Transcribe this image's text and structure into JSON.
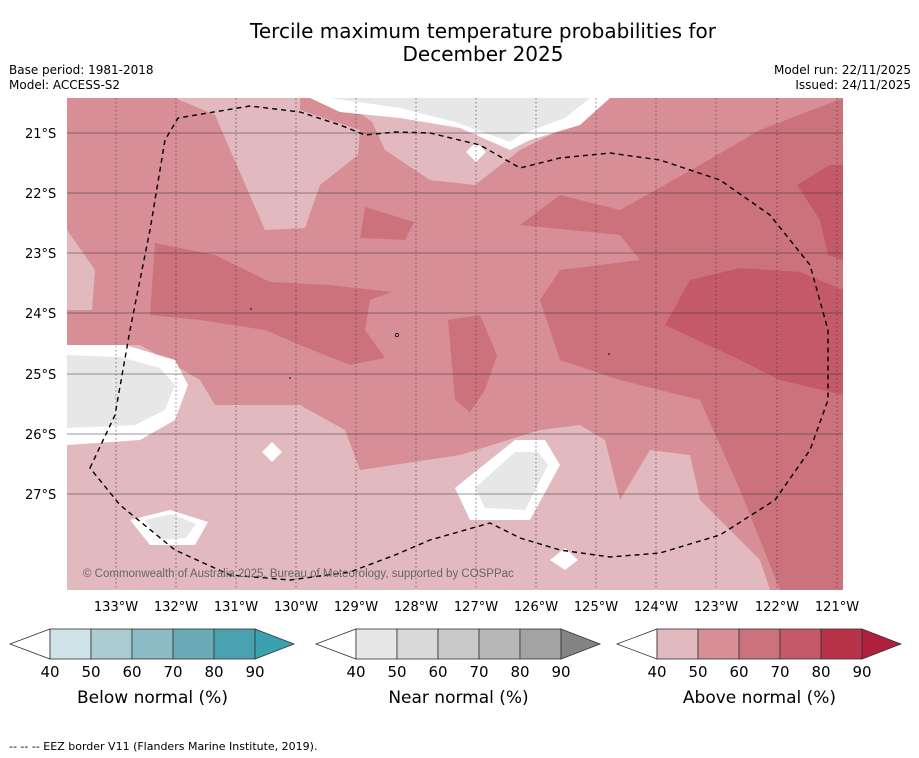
{
  "title_line1": "Tercile maximum temperature probabilities for",
  "title_line2": "December 2025",
  "meta_left": [
    "Base period: 1981-2018",
    "Model: ACCESS-S2"
  ],
  "meta_right": [
    "Model run: 22/11/2025",
    "Issued: 24/11/2025"
  ],
  "map": {
    "lat_labels": [
      "21°S",
      "22°S",
      "23°S",
      "24°S",
      "25°S",
      "26°S",
      "27°S"
    ],
    "lon_labels": [
      "133°W",
      "132°W",
      "131°W",
      "130°W",
      "129°W",
      "128°W",
      "127°W",
      "126°W",
      "125°W",
      "124°W",
      "123°W",
      "122°W",
      "121°W"
    ],
    "copyright": "© Commonwealth of Australia 2025, Bureau of Meteorology, supported by COSPPac",
    "eez_label": "EEZ border V11"
  },
  "legends": [
    {
      "title": "Below normal (%)",
      "ticks": [
        "40",
        "50",
        "60",
        "70",
        "80",
        "90"
      ],
      "colors": [
        "#cfe3e8",
        "#a9cbd1",
        "#8bbbc5",
        "#6aa9b6",
        "#4aa1b0",
        "#3aa1b1"
      ]
    },
    {
      "title": "Near normal (%)",
      "ticks": [
        "40",
        "50",
        "60",
        "70",
        "80",
        "90"
      ],
      "colors": [
        "#e7e7e7",
        "#d9d9d9",
        "#c9c9c9",
        "#b7b7b7",
        "#a3a3a3",
        "#868383"
      ]
    },
    {
      "title": "Above normal (%)",
      "ticks": [
        "40",
        "50",
        "60",
        "70",
        "80",
        "90"
      ],
      "colors": [
        "#e2b9be",
        "#d88e97",
        "#cc727d",
        "#c45a68",
        "#b83347",
        "#b0203e"
      ]
    }
  ],
  "footnote": "--  --  -- EEZ border V11 (Flanders Marine Institute, 2019)."
}
